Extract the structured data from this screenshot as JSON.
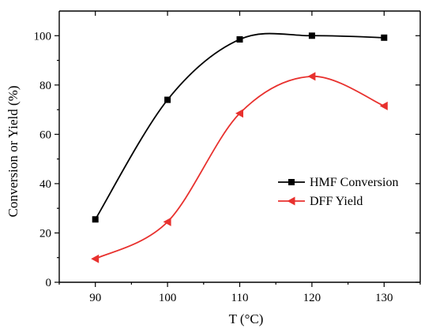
{
  "chart_data": {
    "type": "line",
    "title": "",
    "xlabel": "T (°C)",
    "ylabel": "Conversion or Yield (%)",
    "xlim": [
      85,
      135
    ],
    "ylim": [
      0,
      110
    ],
    "x_ticks": [
      90,
      100,
      110,
      120,
      130
    ],
    "y_ticks": [
      0,
      20,
      40,
      60,
      80,
      100
    ],
    "grid": false,
    "legend_position": "center-right",
    "smooth": true,
    "series": [
      {
        "name": "HMF Conversion",
        "color": "#000000",
        "marker": "square",
        "x": [
          90,
          100,
          110,
          120,
          130
        ],
        "y": [
          25.5,
          74,
          98.5,
          100,
          99.2
        ]
      },
      {
        "name": "DFF Yield",
        "color": "#e8312e",
        "marker": "triangle-left",
        "x": [
          90,
          100,
          110,
          120,
          130
        ],
        "y": [
          9.5,
          24.5,
          68.5,
          83.5,
          71.5
        ]
      }
    ]
  }
}
